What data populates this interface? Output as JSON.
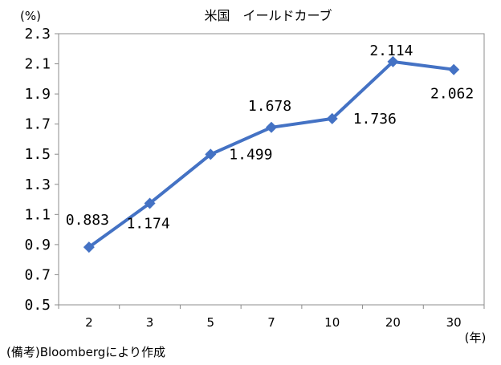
{
  "chart_data": {
    "type": "line",
    "title": "米国　イールドカーブ",
    "ylabel": "(%)",
    "xlabel": "(年)",
    "categories": [
      "2",
      "3",
      "5",
      "7",
      "10",
      "20",
      "30"
    ],
    "values": [
      0.883,
      1.174,
      1.499,
      1.678,
      1.736,
      2.114,
      2.062
    ],
    "data_labels": [
      "0.883",
      "1.174",
      "1.499",
      "1.678",
      "1.736",
      "2.114",
      "2.062"
    ],
    "ylim": [
      0.5,
      2.3
    ],
    "yticks": [
      "0.5",
      "0.7",
      "0.9",
      "1.1",
      "1.3",
      "1.5",
      "1.7",
      "1.9",
      "2.1",
      "2.3"
    ],
    "grid": false,
    "line_color": "#4472C4"
  },
  "note": "(備考)Bloombergにより作成"
}
